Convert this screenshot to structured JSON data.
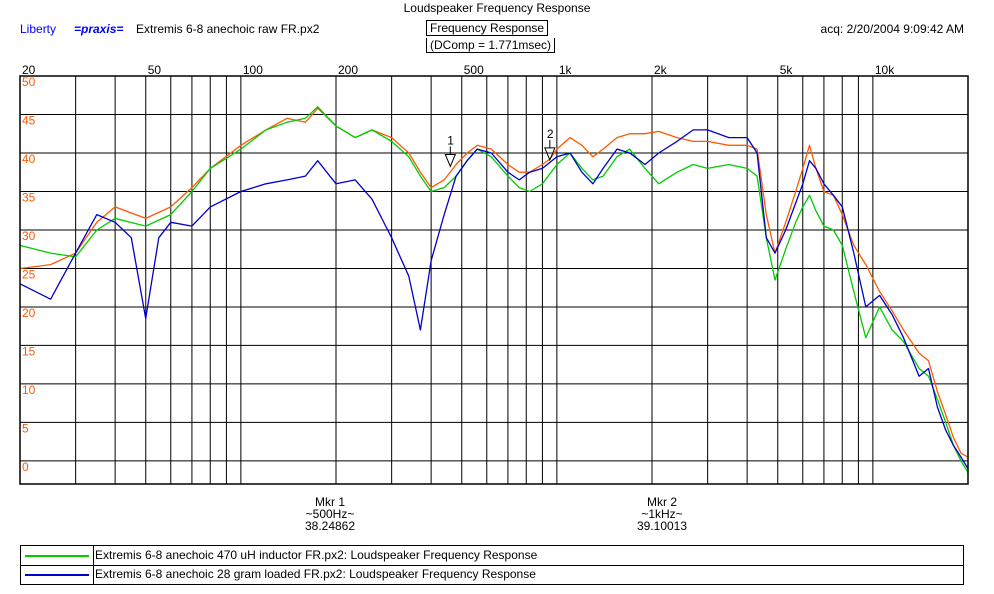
{
  "header": {
    "title": "Loudspeaker Frequency Response",
    "brand": "Liberty",
    "praxis": "=praxis=",
    "filename": "Extremis 6-8 anechoic raw FR.px2",
    "view": "Frequency Response",
    "acq": "acq: 2/20/2004 9:09:42 AM",
    "dcomp": "(DComp = 1.771msec)"
  },
  "markers": [
    {
      "num": "1",
      "label": "Mkr 1",
      "freq": "~500Hz~",
      "value": "38.24862",
      "x": 460
    },
    {
      "num": "2",
      "label": "Mkr 2",
      "freq": "~1kHz~",
      "value": "39.10013",
      "x": 950
    }
  ],
  "legend": [
    {
      "text": "Extremis 6-8 anechoic 470 uH inductor FR.px2:  Loudspeaker Frequency Response",
      "color": "#00cc00"
    },
    {
      "text": "Extremis 6-8 anechoic 28 gram loaded FR.px2:  Loudspeaker Frequency Response",
      "color": "#0000cc"
    }
  ],
  "chart_data": {
    "type": "line",
    "title": "Loudspeaker Frequency Response",
    "x_scale": "log",
    "xlim": [
      20,
      20000
    ],
    "ylim": [
      -3,
      50
    ],
    "x_tick_labels": [
      {
        "v": 20,
        "t": "20"
      },
      {
        "v": 50,
        "t": "50"
      },
      {
        "v": 100,
        "t": "100"
      },
      {
        "v": 200,
        "t": "200"
      },
      {
        "v": 500,
        "t": "500"
      },
      {
        "v": 1000,
        "t": "1k"
      },
      {
        "v": 2000,
        "t": "2k"
      },
      {
        "v": 5000,
        "t": "5k"
      },
      {
        "v": 10000,
        "t": "10k"
      }
    ],
    "y_ticks": [
      0,
      5,
      10,
      15,
      20,
      25,
      30,
      35,
      40,
      45,
      50
    ],
    "grid": true,
    "series": [
      {
        "color": "#ff5a00",
        "points": [
          [
            20,
            25
          ],
          [
            25,
            25.5
          ],
          [
            30,
            27
          ],
          [
            35,
            31
          ],
          [
            40,
            33
          ],
          [
            50,
            31.5
          ],
          [
            60,
            33
          ],
          [
            70,
            35.5
          ],
          [
            80,
            38
          ],
          [
            100,
            41
          ],
          [
            120,
            43
          ],
          [
            140,
            44.5
          ],
          [
            160,
            44
          ],
          [
            175,
            45.8
          ],
          [
            200,
            43.5
          ],
          [
            230,
            42
          ],
          [
            260,
            43
          ],
          [
            300,
            42
          ],
          [
            340,
            40
          ],
          [
            370,
            37.5
          ],
          [
            400,
            35.5
          ],
          [
            440,
            36.5
          ],
          [
            480,
            38.5
          ],
          [
            520,
            40
          ],
          [
            560,
            41
          ],
          [
            620,
            40.5
          ],
          [
            700,
            38.5
          ],
          [
            760,
            37.5
          ],
          [
            820,
            37.5
          ],
          [
            900,
            38.5
          ],
          [
            950,
            39.2
          ],
          [
            1000,
            40.5
          ],
          [
            1100,
            42
          ],
          [
            1200,
            41
          ],
          [
            1300,
            39.5
          ],
          [
            1400,
            40.5
          ],
          [
            1550,
            42
          ],
          [
            1700,
            42.5
          ],
          [
            1900,
            42.5
          ],
          [
            2100,
            42.8
          ],
          [
            2400,
            42
          ],
          [
            2700,
            41.5
          ],
          [
            3000,
            41.5
          ],
          [
            3500,
            41
          ],
          [
            4000,
            41
          ],
          [
            4300,
            40.5
          ],
          [
            4600,
            32
          ],
          [
            4900,
            27
          ],
          [
            5300,
            31
          ],
          [
            5700,
            35
          ],
          [
            6000,
            38
          ],
          [
            6300,
            41
          ],
          [
            6600,
            38
          ],
          [
            7000,
            35
          ],
          [
            7500,
            34.5
          ],
          [
            8000,
            32
          ],
          [
            8700,
            28
          ],
          [
            9500,
            25.5
          ],
          [
            10500,
            22
          ],
          [
            11500,
            19.5
          ],
          [
            12500,
            17
          ],
          [
            14000,
            14
          ],
          [
            15000,
            13
          ],
          [
            16000,
            9
          ],
          [
            17000,
            6
          ],
          [
            18000,
            3
          ],
          [
            19000,
            1
          ],
          [
            20000,
            0.5
          ]
        ]
      },
      {
        "color": "#00cc00",
        "points": [
          [
            20,
            28
          ],
          [
            25,
            27
          ],
          [
            30,
            26.5
          ],
          [
            35,
            30
          ],
          [
            40,
            31.5
          ],
          [
            50,
            30.5
          ],
          [
            60,
            32
          ],
          [
            70,
            35
          ],
          [
            80,
            38
          ],
          [
            100,
            40.5
          ],
          [
            120,
            43
          ],
          [
            140,
            44
          ],
          [
            160,
            44.5
          ],
          [
            175,
            46
          ],
          [
            200,
            43.5
          ],
          [
            230,
            42
          ],
          [
            260,
            43
          ],
          [
            300,
            41.5
          ],
          [
            340,
            39.5
          ],
          [
            370,
            37
          ],
          [
            400,
            35
          ],
          [
            440,
            35.5
          ],
          [
            480,
            37
          ],
          [
            520,
            39
          ],
          [
            560,
            40.5
          ],
          [
            620,
            39.5
          ],
          [
            700,
            37
          ],
          [
            760,
            35.5
          ],
          [
            820,
            35
          ],
          [
            900,
            36
          ],
          [
            1000,
            38.5
          ],
          [
            1100,
            40
          ],
          [
            1200,
            38
          ],
          [
            1300,
            36.5
          ],
          [
            1400,
            37
          ],
          [
            1550,
            39.5
          ],
          [
            1700,
            40.5
          ],
          [
            1900,
            38
          ],
          [
            2100,
            36
          ],
          [
            2400,
            37.5
          ],
          [
            2700,
            38.5
          ],
          [
            3000,
            38
          ],
          [
            3500,
            38.5
          ],
          [
            4000,
            38
          ],
          [
            4300,
            37
          ],
          [
            4600,
            29
          ],
          [
            4900,
            23.5
          ],
          [
            5300,
            27.5
          ],
          [
            5700,
            31
          ],
          [
            6000,
            33
          ],
          [
            6300,
            34.5
          ],
          [
            6600,
            32.5
          ],
          [
            7000,
            30.5
          ],
          [
            7500,
            30
          ],
          [
            8000,
            28
          ],
          [
            8700,
            22
          ],
          [
            9500,
            16
          ],
          [
            10500,
            20
          ],
          [
            11500,
            17
          ],
          [
            12500,
            15.5
          ],
          [
            14000,
            12
          ],
          [
            15000,
            11
          ],
          [
            16000,
            8
          ],
          [
            17000,
            5
          ],
          [
            18000,
            2
          ],
          [
            19000,
            0
          ],
          [
            20000,
            -1.5
          ]
        ]
      },
      {
        "color": "#0000cc",
        "points": [
          [
            20,
            23
          ],
          [
            25,
            21
          ],
          [
            30,
            27
          ],
          [
            35,
            32
          ],
          [
            40,
            31
          ],
          [
            45,
            29
          ],
          [
            50,
            18.5
          ],
          [
            55,
            29
          ],
          [
            60,
            31
          ],
          [
            70,
            30.5
          ],
          [
            80,
            33
          ],
          [
            100,
            35
          ],
          [
            120,
            36
          ],
          [
            140,
            36.5
          ],
          [
            160,
            37
          ],
          [
            175,
            39
          ],
          [
            200,
            36
          ],
          [
            230,
            36.5
          ],
          [
            260,
            34
          ],
          [
            300,
            29
          ],
          [
            340,
            24
          ],
          [
            370,
            17
          ],
          [
            400,
            26
          ],
          [
            440,
            32
          ],
          [
            480,
            37
          ],
          [
            520,
            39
          ],
          [
            560,
            40.5
          ],
          [
            620,
            40
          ],
          [
            700,
            37.5
          ],
          [
            760,
            36.5
          ],
          [
            820,
            37.5
          ],
          [
            900,
            38
          ],
          [
            1000,
            39.5
          ],
          [
            1100,
            40
          ],
          [
            1200,
            37.5
          ],
          [
            1300,
            36
          ],
          [
            1400,
            38
          ],
          [
            1550,
            40.5
          ],
          [
            1700,
            40
          ],
          [
            1900,
            38.5
          ],
          [
            2100,
            40
          ],
          [
            2400,
            41.5
          ],
          [
            2700,
            43
          ],
          [
            3000,
            43
          ],
          [
            3500,
            42
          ],
          [
            4000,
            42
          ],
          [
            4300,
            40
          ],
          [
            4600,
            29
          ],
          [
            4900,
            27
          ],
          [
            5300,
            30
          ],
          [
            5700,
            33.5
          ],
          [
            6000,
            36
          ],
          [
            6300,
            39
          ],
          [
            6600,
            38
          ],
          [
            7000,
            36
          ],
          [
            7500,
            34.5
          ],
          [
            8000,
            33
          ],
          [
            8700,
            27
          ],
          [
            9500,
            20
          ],
          [
            10500,
            21.5
          ],
          [
            11500,
            19
          ],
          [
            12500,
            16
          ],
          [
            14000,
            11
          ],
          [
            15000,
            12
          ],
          [
            16000,
            7
          ],
          [
            17000,
            4
          ],
          [
            18000,
            2
          ],
          [
            19000,
            0.5
          ],
          [
            20000,
            -1
          ]
        ]
      }
    ]
  }
}
